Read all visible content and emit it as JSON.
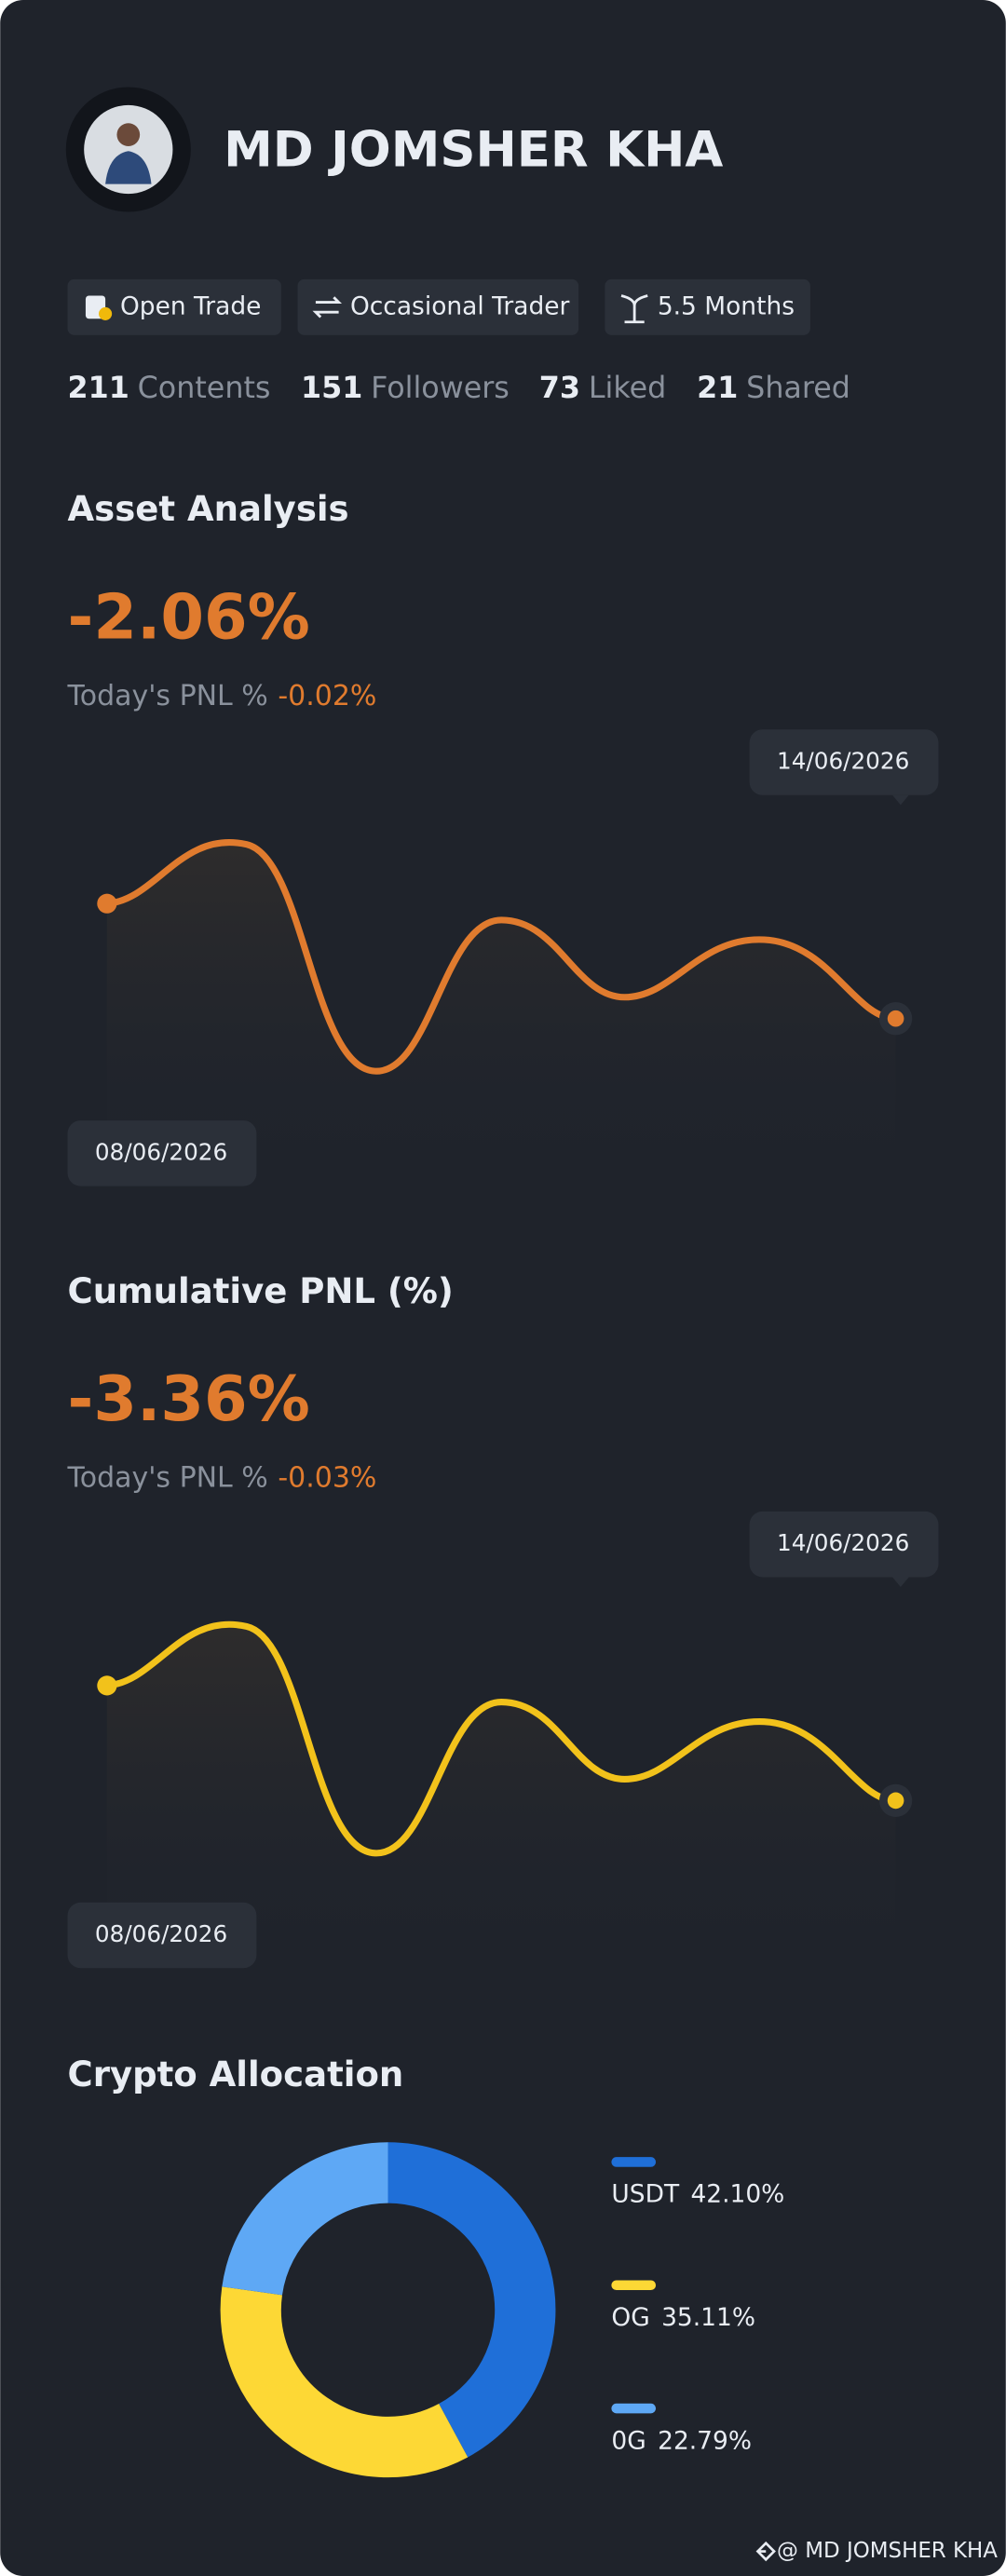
{
  "profile": {
    "name": "MD JOMSHER  KHA",
    "badges": [
      "Open Trade",
      "Occasional Trader",
      "5.5 Months"
    ],
    "stats": [
      {
        "value": 211,
        "label": "Contents"
      },
      {
        "value": 151,
        "label": "Followers"
      },
      {
        "value": 73,
        "label": "Liked"
      },
      {
        "value": 21,
        "label": "Shared"
      }
    ]
  },
  "asset_analysis": {
    "title": "Asset Analysis",
    "value": "-2.06%",
    "today_label": "Today's PNL %",
    "today_value": "-0.02%",
    "start_date": "08/06/2026",
    "end_date": "14/06/2026"
  },
  "cumulative_pnl": {
    "title": "Cumulative PNL (%)",
    "value": "-3.36%",
    "today_label": "Today's PNL %",
    "today_value": "-0.03%",
    "start_date": "08/06/2026",
    "end_date": "14/06/2026"
  },
  "chart_data": {
    "type": "pie",
    "title": "Crypto Allocation",
    "donut": true,
    "categories": [
      "USDT",
      "OG",
      "0G"
    ],
    "values": [
      42.1,
      35.11,
      22.79
    ],
    "value_labels": [
      "42.10%",
      "35.11%",
      "22.79%"
    ],
    "colors": [
      "#1f6fd8",
      "#fdd835",
      "#5ea8f5"
    ]
  },
  "footer": "@ MD JOMSHER  KHA"
}
